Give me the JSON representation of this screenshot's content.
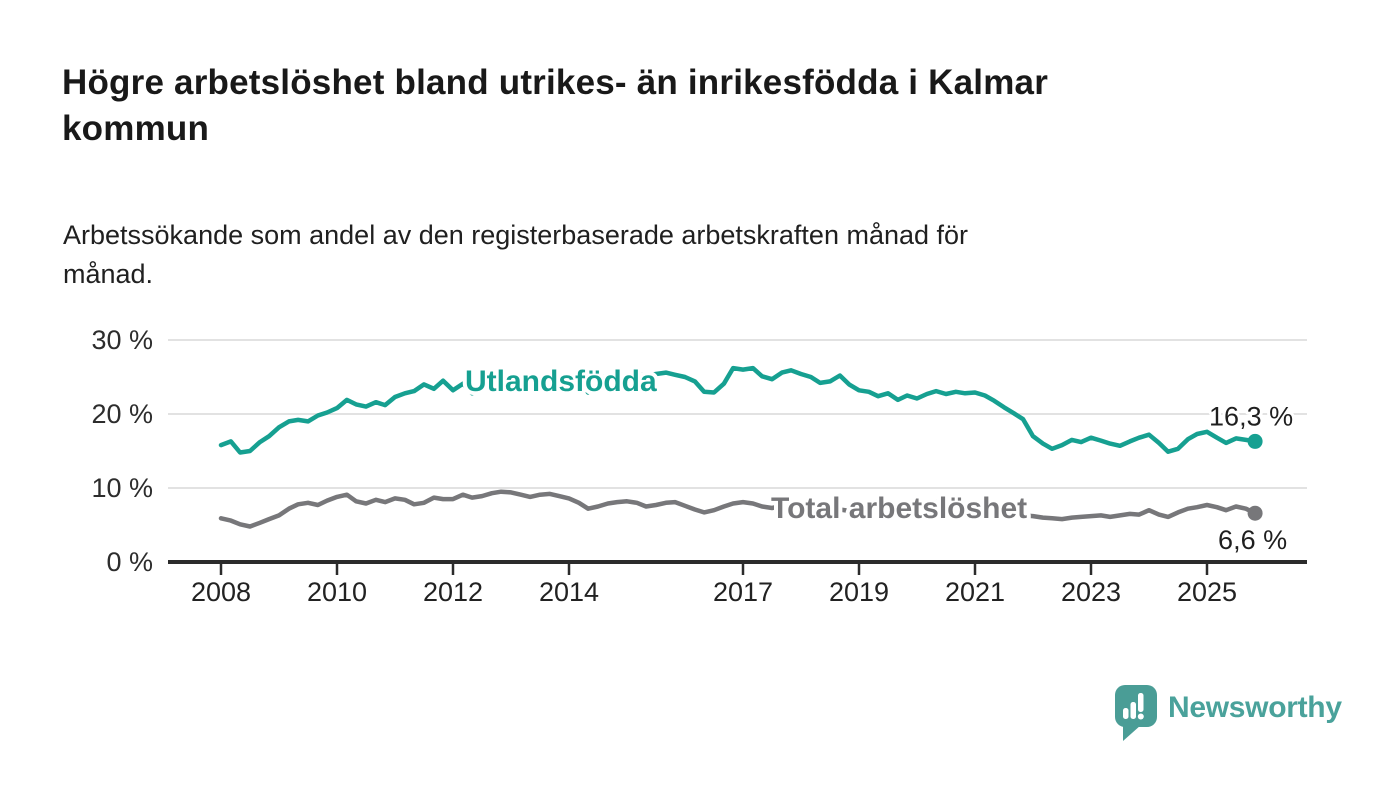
{
  "header": {
    "title_lines": [
      "Högre arbetslöshet bland utrikes- än inrikesfödda i Kalmar",
      "kommun"
    ],
    "subtitle_lines": [
      "Arbetssökande som andel av den registerbaserade arbetskraften månad för",
      "månad."
    ]
  },
  "chart_data": {
    "type": "line",
    "title": "Högre arbetslöshet bland utrikes- än inrikesfödda i Kalmar kommun",
    "subtitle": "Arbetssökande som andel av den registerbaserade arbetskraften månad för månad.",
    "xlabel": "",
    "ylabel": "",
    "grid": true,
    "legend_position": "inline-labels",
    "ylim": [
      0,
      30
    ],
    "yticks": [
      {
        "value": 0,
        "label": "0 %"
      },
      {
        "value": 10,
        "label": "10 %"
      },
      {
        "value": 20,
        "label": "20 %"
      },
      {
        "value": 30,
        "label": "30 %"
      }
    ],
    "xticks": [
      2008,
      2010,
      2012,
      2014,
      2017,
      2019,
      2021,
      2023,
      2025
    ],
    "x": [
      2008,
      2008.17,
      2008.33,
      2008.5,
      2008.67,
      2008.83,
      2009,
      2009.17,
      2009.33,
      2009.5,
      2009.67,
      2009.83,
      2010,
      2010.17,
      2010.33,
      2010.5,
      2010.67,
      2010.83,
      2011,
      2011.17,
      2011.33,
      2011.5,
      2011.67,
      2011.83,
      2012,
      2012.17,
      2012.33,
      2012.5,
      2012.67,
      2012.83,
      2013,
      2013.17,
      2013.33,
      2013.5,
      2013.67,
      2013.83,
      2014,
      2014.17,
      2014.33,
      2014.5,
      2014.67,
      2014.83,
      2015,
      2015.17,
      2015.33,
      2015.5,
      2015.67,
      2015.83,
      2016,
      2016.17,
      2016.33,
      2016.5,
      2016.67,
      2016.83,
      2017,
      2017.17,
      2017.33,
      2017.5,
      2017.67,
      2017.83,
      2018,
      2018.17,
      2018.33,
      2018.5,
      2018.67,
      2018.83,
      2019,
      2019.17,
      2019.33,
      2019.5,
      2019.67,
      2019.83,
      2020,
      2020.17,
      2020.33,
      2020.5,
      2020.67,
      2020.83,
      2021,
      2021.17,
      2021.33,
      2021.5,
      2021.67,
      2021.83,
      2022,
      2022.17,
      2022.33,
      2022.5,
      2022.67,
      2022.83,
      2023,
      2023.17,
      2023.33,
      2023.5,
      2023.67,
      2023.83,
      2024,
      2024.17,
      2024.33,
      2024.5,
      2024.67,
      2024.83,
      2025,
      2025.17,
      2025.33,
      2025.5,
      2025.67,
      2025.83
    ],
    "series": [
      {
        "name": "Utlandsfödda",
        "color": "#16a091",
        "end_label": "16,3 %",
        "last_value": 16.3,
        "values": [
          15.8,
          16.3,
          14.8,
          15.0,
          16.2,
          17.0,
          18.2,
          19.0,
          19.2,
          19.0,
          19.8,
          20.2,
          20.8,
          21.9,
          21.3,
          21.0,
          21.6,
          21.2,
          22.3,
          22.8,
          23.1,
          24.0,
          23.4,
          24.5,
          23.2,
          24.1,
          22.8,
          23.3,
          23.9,
          24.2,
          24.2,
          25.0,
          24.6,
          24.8,
          25.1,
          24.8,
          24.6,
          24.5,
          22.9,
          24.6,
          25.3,
          25.0,
          25.2,
          25.5,
          25.1,
          25.4,
          25.6,
          25.3,
          25.0,
          24.4,
          23.0,
          22.9,
          24.1,
          26.2,
          26.0,
          26.2,
          25.1,
          24.7,
          25.6,
          25.9,
          25.4,
          25.0,
          24.2,
          24.4,
          25.2,
          24.0,
          23.2,
          23.0,
          22.4,
          22.8,
          21.9,
          22.5,
          22.1,
          22.7,
          23.1,
          22.7,
          23.0,
          22.8,
          22.9,
          22.5,
          21.8,
          20.9,
          20.1,
          19.3,
          17.0,
          16.0,
          15.3,
          15.8,
          16.5,
          16.2,
          16.8,
          16.4,
          16.0,
          15.7,
          16.3,
          16.8,
          17.2,
          16.1,
          14.9,
          15.3,
          16.6,
          17.3,
          17.6,
          16.8,
          16.1,
          16.7,
          16.5,
          16.3
        ]
      },
      {
        "name": "Total arbetslöshet",
        "color": "#77777a",
        "end_label": "6,6 %",
        "last_value": 6.6,
        "values": [
          5.9,
          5.6,
          5.1,
          4.8,
          5.3,
          5.8,
          6.3,
          7.2,
          7.8,
          8.0,
          7.7,
          8.3,
          8.8,
          9.1,
          8.2,
          7.9,
          8.4,
          8.1,
          8.6,
          8.4,
          7.8,
          8.0,
          8.7,
          8.5,
          8.5,
          9.1,
          8.7,
          8.9,
          9.3,
          9.5,
          9.4,
          9.1,
          8.8,
          9.1,
          9.2,
          8.9,
          8.6,
          8.0,
          7.2,
          7.5,
          7.9,
          8.1,
          8.2,
          8.0,
          7.5,
          7.7,
          8.0,
          8.1,
          7.6,
          7.1,
          6.7,
          7.0,
          7.5,
          7.9,
          8.1,
          7.9,
          7.5,
          7.3,
          7.6,
          7.4,
          7.2,
          7.0,
          6.8,
          6.9,
          7.1,
          6.9,
          6.8,
          6.9,
          7.0,
          7.1,
          7.3,
          7.5,
          7.7,
          7.9,
          8.1,
          8.0,
          7.8,
          7.7,
          7.5,
          7.3,
          7.0,
          6.8,
          6.5,
          6.3,
          6.2,
          6.0,
          5.9,
          5.8,
          6.0,
          6.1,
          6.2,
          6.3,
          6.1,
          6.3,
          6.5,
          6.4,
          7.0,
          6.4,
          6.1,
          6.7,
          7.2,
          7.4,
          7.7,
          7.4,
          7.0,
          7.5,
          7.2,
          6.6
        ]
      }
    ]
  },
  "branding": {
    "logo_text": "Newsworthy",
    "logo_icon": "bar-chart-speech-bubble-icon",
    "logo_color": "#4aa29b",
    "icon_color": "#4a9d96"
  }
}
